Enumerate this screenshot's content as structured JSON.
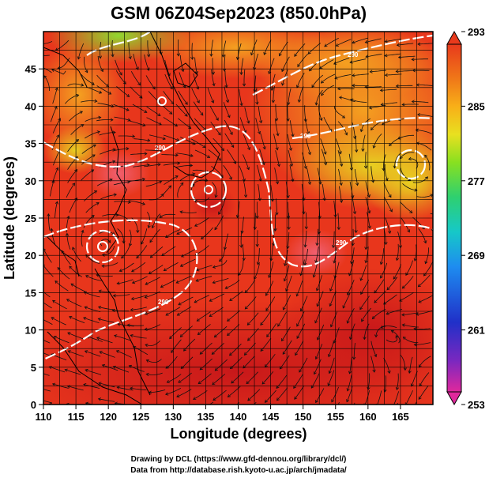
{
  "title": "GSM 06Z04Sep2023 (850.0hPa)",
  "x_axis": {
    "label": "Longitude (degrees)",
    "range": [
      110,
      170
    ],
    "ticks": [
      "110",
      "115",
      "120",
      "125",
      "130",
      "135",
      "140",
      "145",
      "150",
      "155",
      "160",
      "165"
    ]
  },
  "y_axis": {
    "label": "Latitude  (degrees)",
    "range": [
      0,
      50
    ],
    "ticks": [
      "0",
      "5",
      "10",
      "15",
      "20",
      "25",
      "30",
      "35",
      "40",
      "45"
    ]
  },
  "colorbar": {
    "range": [
      253,
      293
    ],
    "labels": [
      "293",
      "285",
      "277",
      "269",
      "261",
      "253"
    ],
    "colors": [
      "#e0289c",
      "#7a28c0",
      "#2030c8",
      "#1e8cf0",
      "#16c8c8",
      "#2ed070",
      "#88e020",
      "#e8e020",
      "#f8b018",
      "#f07818",
      "#e83a1c",
      "#d8201c"
    ]
  },
  "contours": [
    {
      "label": "290"
    },
    {
      "label": "290"
    },
    {
      "label": "290"
    },
    {
      "label": "290"
    },
    {
      "label": "290"
    }
  ],
  "credits": {
    "line1": "Drawing by DCL (https://www.gfd-dennou.org/library/dcl/)",
    "line2": "Data from http://database.rish.kyoto-u.ac.jp/arch/jmadata/"
  },
  "colors": {
    "warm": "#e8361c",
    "hot": "#d2201a",
    "mild": "#f07a20",
    "cool": "#f0b020",
    "yellow": "#e0d820",
    "green": "#80d030"
  }
}
